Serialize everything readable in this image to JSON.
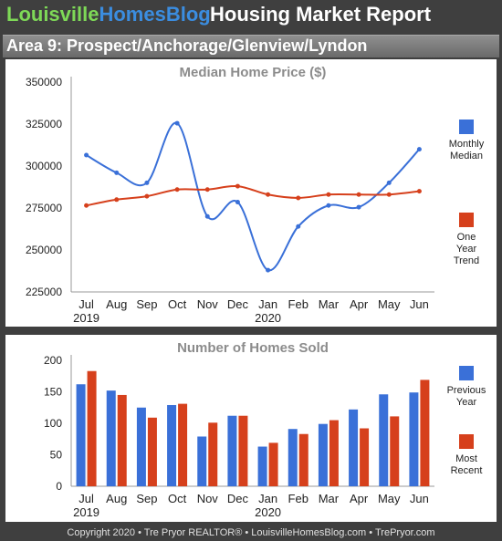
{
  "header": {
    "brand_part1": "Louisville",
    "brand_part2": "HomesBlog",
    "report_title": "Housing Market Report",
    "area_title": "Area 9: Prospect/Anchorage/Glenview/Lyndon"
  },
  "footer": {
    "text": "Copyright 2020 • Tre Pryor REALTOR® • LouisvilleHomesBlog.com • TrePryor.com"
  },
  "colors": {
    "blue": "#3a70d8",
    "red": "#d6401c",
    "brand_green": "#7ed957",
    "brand_blue": "#3b8de0"
  },
  "chart_data": [
    {
      "type": "line",
      "title": "Median Home Price ($)",
      "categories": [
        "Jul",
        "Aug",
        "Sep",
        "Oct",
        "Nov",
        "Dec",
        "Jan",
        "Feb",
        "Mar",
        "Apr",
        "May",
        "Jun"
      ],
      "year_labels": [
        "2019",
        "",
        "",
        "",
        "",
        "",
        "2020",
        "",
        "",
        "",
        "",
        ""
      ],
      "ylim": [
        225000,
        350000
      ],
      "yticks": [
        "225000",
        "250000",
        "275000",
        "300000",
        "325000",
        "350000"
      ],
      "grid": false,
      "legend_position": "right",
      "series": [
        {
          "name": "Monthly Median",
          "legend_lines": [
            "Monthly",
            "Median"
          ],
          "color": "#3a70d8",
          "values": [
            306500,
            296000,
            290000,
            325500,
            270000,
            278500,
            238000,
            264000,
            276500,
            275500,
            290000,
            310000
          ]
        },
        {
          "name": "One Year Trend",
          "legend_lines": [
            "One",
            "Year",
            "Trend"
          ],
          "color": "#d6401c",
          "values": [
            276500,
            280000,
            282000,
            286000,
            286000,
            288000,
            283000,
            281000,
            283000,
            283000,
            283000,
            285000
          ]
        }
      ]
    },
    {
      "type": "bar",
      "title": "Number of Homes Sold",
      "categories": [
        "Jul",
        "Aug",
        "Sep",
        "Oct",
        "Nov",
        "Dec",
        "Jan",
        "Feb",
        "Mar",
        "Apr",
        "May",
        "Jun"
      ],
      "year_labels": [
        "2019",
        "",
        "",
        "",
        "",
        "",
        "2020",
        "",
        "",
        "",
        "",
        ""
      ],
      "ylim": [
        0,
        200
      ],
      "yticks": [
        "0",
        "50",
        "100",
        "150",
        "200"
      ],
      "grid": false,
      "legend_position": "right",
      "series": [
        {
          "name": "Previous Year",
          "legend_lines": [
            "Previous",
            "Year"
          ],
          "color": "#3a70d8",
          "values": [
            162,
            152,
            125,
            129,
            79,
            112,
            63,
            91,
            99,
            122,
            146,
            149
          ]
        },
        {
          "name": "Most Recent",
          "legend_lines": [
            "Most",
            "Recent"
          ],
          "color": "#d6401c",
          "values": [
            183,
            145,
            109,
            131,
            101,
            112,
            69,
            83,
            105,
            92,
            111,
            169
          ]
        }
      ]
    }
  ]
}
